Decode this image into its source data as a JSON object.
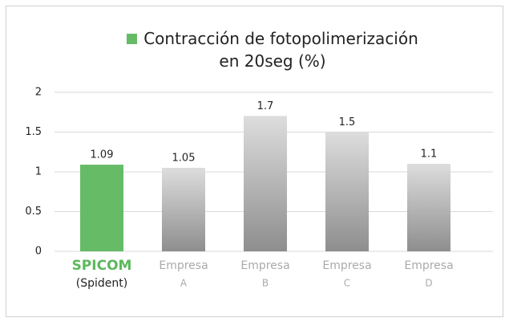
{
  "chart_data": {
    "type": "bar",
    "legend": [
      {
        "name": "Contracción de fotopolimerización en 20seg (%)",
        "color": "#66bb66"
      }
    ],
    "categories": [
      [
        "SPICOM",
        "(Spident)"
      ],
      [
        "Empresa",
        "A"
      ],
      [
        "Empresa",
        "B"
      ],
      [
        "Empresa",
        "C"
      ],
      [
        "Empresa",
        "D"
      ]
    ],
    "values": [
      1.09,
      1.05,
      1.7,
      1.5,
      1.1
    ],
    "colors": [
      "#66bb66",
      "#8e8e8e",
      "#8e8e8e",
      "#8e8e8e",
      "#8e8e8e"
    ],
    "ylim": [
      0,
      2
    ],
    "yticks": [
      0,
      0.5,
      1,
      1.5,
      2
    ],
    "grid": true
  }
}
